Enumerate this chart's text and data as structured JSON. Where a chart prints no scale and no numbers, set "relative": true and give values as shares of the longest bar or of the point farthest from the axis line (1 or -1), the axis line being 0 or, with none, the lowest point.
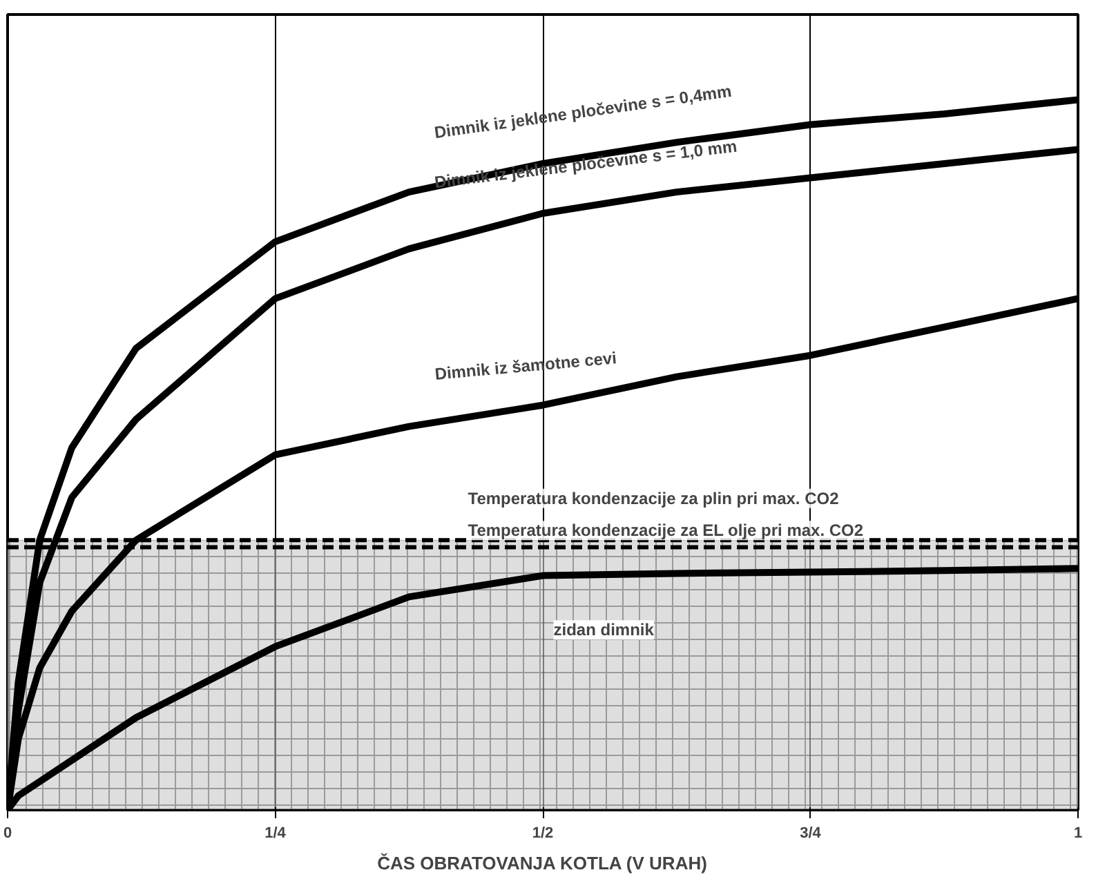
{
  "chart_data": {
    "type": "line",
    "relative": true,
    "xlabel": "ČAS OBRATOVANJA KOTLA (V URAH)",
    "xlim": [
      0,
      1
    ],
    "xticks": [
      0,
      {
        "value": 0.25,
        "label": "1/4"
      },
      {
        "value": 0.5,
        "label": "1/2"
      },
      {
        "value": 0.75,
        "label": "3/4"
      },
      1
    ],
    "x": [
      0,
      0.01,
      0.03,
      0.06,
      0.12,
      0.25,
      0.375,
      0.5,
      0.625,
      0.75,
      0.875,
      1
    ],
    "series": [
      {
        "name": "Dimnik iz jeklene pločevine s = 0,4mm",
        "color": "#000000",
        "values": [
          0,
          0.18,
          0.38,
          0.51,
          0.65,
          0.8,
          0.87,
          0.91,
          0.94,
          0.965,
          0.98,
          1
        ]
      },
      {
        "name": "Dimnik iz jeklene pločevine s = 1,0 mm",
        "color": "#000000",
        "values": [
          0,
          0.14,
          0.32,
          0.44,
          0.55,
          0.72,
          0.79,
          0.84,
          0.87,
          0.89,
          0.91,
          0.93
        ]
      },
      {
        "name": "Dimnik iz šamotne cevi",
        "color": "#000000",
        "values": [
          0,
          0.1,
          0.2,
          0.28,
          0.38,
          0.5,
          0.54,
          0.57,
          0.61,
          0.64,
          0.68,
          0.72
        ]
      },
      {
        "name": "zidan dimnik",
        "color": "#000000",
        "values": [
          0,
          0.02,
          0.04,
          0.07,
          0.13,
          0.23,
          0.3,
          0.33,
          0.333,
          0.335,
          0.337,
          0.34
        ]
      }
    ],
    "ref_lines": [
      {
        "axis": "y",
        "value": 0.38,
        "label": "Temperatura kondenzacije za plin pri max. CO2",
        "line_style": "dashed",
        "color": "#000000"
      },
      {
        "axis": "y",
        "value": 0.37,
        "label": "Temperatura kondenzacije za EL olje pri max. CO2",
        "line_style": "dashed",
        "color": "#000000"
      }
    ],
    "bands": [
      {
        "axis": "y",
        "from": 0,
        "to": 0.38,
        "color": "#c8c8c8"
      }
    ],
    "grid": "x",
    "marker": "none",
    "line_style": "solid"
  }
}
